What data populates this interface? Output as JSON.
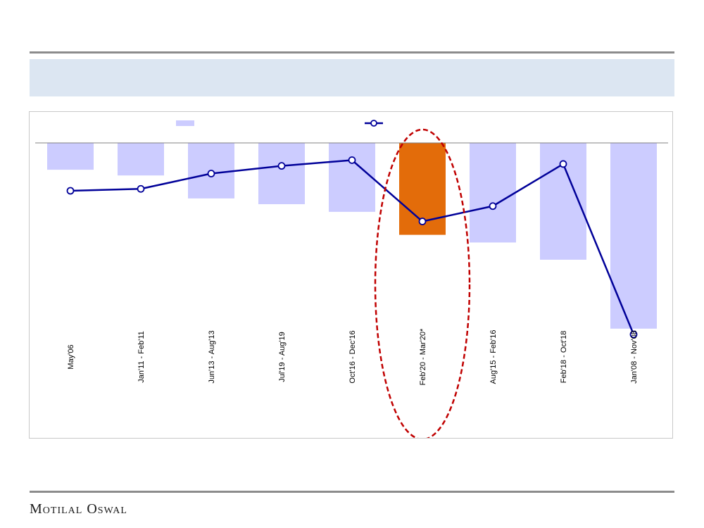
{
  "colors": {
    "bar": "#ccccff",
    "bar_highlight": "#e36c0a",
    "line": "#000099",
    "highlight_ellipse": "#c00000",
    "band": "#dce6f2",
    "rule": "#8c8c8c"
  },
  "header": {
    "title": ""
  },
  "footer": {
    "brand": "Motilal Oswal"
  },
  "chart_data": {
    "type": "bar",
    "title": "",
    "legend_placement": "top",
    "categories": [
      "May'06",
      "Jan'11 - Feb'11",
      "Jun'13 - Aug'13",
      "Jul'19 - Aug'19",
      "Oct'16 - Dec'16",
      "Feb'20 - Mar'20*",
      "Aug'15 - Feb'16",
      "Feb'18 - Oct'18",
      "Jan'08 - Nov'08"
    ],
    "highlight_category": "Feb'20 - Mar'20*",
    "series": [
      {
        "type": "bar",
        "values": [
          -14,
          -17,
          -29,
          -32,
          -36,
          -48,
          -52,
          -61,
          -97
        ]
      },
      {
        "type": "line",
        "values": [
          -25,
          -24,
          -16,
          -12,
          -9,
          -41,
          -33,
          -11,
          -100
        ]
      }
    ],
    "ylim": [
      -120,
      0
    ],
    "grid": false
  }
}
